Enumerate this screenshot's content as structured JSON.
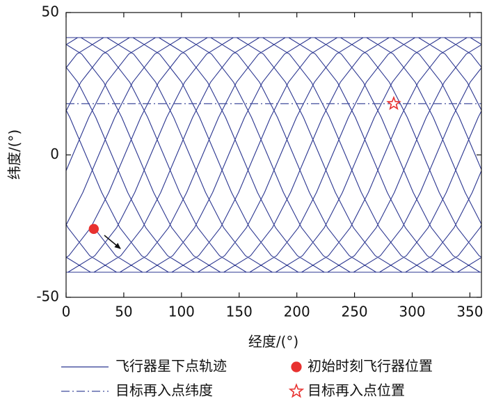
{
  "chart_data": {
    "type": "line",
    "x_label": "经度/(°)",
    "y_label": "纬度/(°)",
    "xlim": [
      0,
      360
    ],
    "ylim": [
      -50,
      50
    ],
    "xticks": [
      0,
      50,
      100,
      150,
      200,
      250,
      300,
      350
    ],
    "yticks": [
      -50,
      0,
      50
    ],
    "series": [
      {
        "name": "飞行器星下点轨迹",
        "color": "#2b3690",
        "kind": "line",
        "dash": "solid",
        "x": [
          24.0,
          43.0,
          66.3,
          91.6,
          114.9,
          133.9,
          149.5,
          163.3,
          177.2,
          192.7,
          211.8,
          235.0,
          260.4,
          283.6,
          302.7,
          318.2,
          332.1,
          345.9,
          361.5,
          null,
          -14.1,
          1.5,
          20.5,
          43.8,
          69.1,
          92.4,
          111.4,
          127.0,
          140.8,
          154.7,
          170.2,
          189.3,
          212.5,
          237.9,
          261.1,
          280.2,
          295.7,
          309.6,
          323.4,
          339.0,
          358.0,
          381.3,
          null,
          -2.0,
          21.3,
          46.6,
          69.9,
          88.9,
          104.5,
          118.3,
          132.2,
          147.7,
          166.8,
          190.0,
          215.4,
          238.6,
          257.7,
          273.2,
          287.1,
          300.9,
          316.5,
          335.5,
          358.8,
          384.1,
          null,
          -1.2,
          24.1,
          47.4,
          66.4,
          82.0,
          95.8,
          109.7,
          125.2,
          144.3,
          167.5,
          192.9,
          216.1,
          235.2,
          250.7,
          264.6,
          278.4,
          294.0,
          313.0,
          336.3,
          361.6,
          null,
          -23.7,
          1.6,
          24.9,
          43.9,
          59.5,
          73.3,
          87.2,
          102.7,
          121.8,
          145.0,
          170.4,
          193.6,
          212.7,
          228.2,
          242.1,
          255.9,
          271.5,
          290.5,
          313.8,
          339.1,
          362.4,
          null,
          -20.9,
          2.4,
          21.4,
          37.0,
          50.8,
          64.7,
          80.2,
          99.3,
          122.5,
          147.9,
          171.1,
          190.2,
          205.7,
          219.6,
          233.4,
          249.0,
          268.0,
          291.3,
          316.6,
          339.9,
          358.9,
          374.5,
          null,
          -1.1,
          14.5,
          28.3,
          42.2,
          57.7,
          76.8,
          100.0,
          125.4,
          148.6,
          167.7,
          183.2,
          197.1,
          210.9,
          226.5,
          245.5,
          268.8,
          294.1,
          317.4,
          336.4,
          352.0,
          365.8,
          null,
          -8.0,
          5.8,
          19.7,
          35.2,
          54.3,
          77.5,
          102.9,
          126.1,
          145.2,
          160.7,
          174.6,
          188.4,
          204.0,
          223.0,
          246.3,
          271.6,
          294.9,
          313.9,
          329.5,
          343.3,
          357.2,
          372.7,
          null,
          -2.8,
          12.7,
          31.8,
          55.0,
          80.4,
          103.6,
          122.7,
          138.2,
          152.1,
          165.9,
          181.5,
          200.5,
          223.8,
          249.1,
          272.4,
          291.4,
          307.0,
          320.8,
          334.7,
          350.2,
          369.3,
          null,
          -9.8,
          9.3,
          32.5,
          57.9,
          81.1,
          100.2,
          115.7,
          129.6,
          143.4,
          159.0,
          178.0,
          201.3,
          226.6,
          249.9,
          268.9,
          284.5,
          298.3,
          312.2,
          327.7,
          346.8,
          370.0,
          null,
          -13.2,
          10.0,
          35.4,
          58.6,
          77.7,
          93.2,
          107.1,
          120.9,
          136.5,
          155.5,
          178.8,
          204.1,
          227.4,
          246.4,
          262.0,
          275.8,
          289.7,
          305.2,
          324.3,
          347.5,
          372.9,
          null,
          -12.5,
          12.9,
          36.1,
          55.2,
          70.7,
          84.6,
          98.4,
          114.0,
          133.0,
          156.3,
          181.6,
          204.9,
          223.9,
          239.5,
          253.3,
          267.2,
          282.7,
          301.8,
          325.0,
          350.4,
          373.6,
          null,
          -9.6,
          13.6,
          32.7,
          48.2,
          62.1,
          75.9,
          91.5,
          110.5,
          133.8,
          159.1,
          182.4,
          201.4,
          217.0,
          230.8,
          244.7,
          260.2,
          279.3,
          302.5,
          327.9,
          351.1,
          370.2,
          null,
          -8.9,
          10.2,
          25.7,
          39.6,
          53.4,
          69.0,
          88.0,
          111.3,
          136.6,
          159.9,
          178.9,
          194.5,
          208.3,
          222.2,
          237.7,
          256.8,
          280.0,
          305.4,
          328.6,
          347.7,
          363.2,
          null,
          -12.3,
          3.2,
          17.1,
          30.9,
          46.5,
          65.5,
          88.8,
          114.1,
          137.4,
          156.4,
          172.0,
          185.8,
          199.7,
          215.2,
          234.3,
          257.5,
          282.9,
          306.1,
          325.2,
          340.7,
          354.6,
          368.4
        ],
        "values": [
          -25.5,
          -35.4,
          -41.2,
          -41.2,
          -35.4,
          -25.5,
          -13.2,
          0,
          13.2,
          25.5,
          35.4,
          41.2,
          41.2,
          35.4,
          25.5,
          13.2,
          0,
          -13.2,
          -25.5,
          null,
          -13.2,
          -25.5,
          -35.4,
          -41.2,
          -41.2,
          -35.4,
          -25.5,
          -13.2,
          0,
          13.2,
          25.5,
          35.4,
          41.2,
          41.2,
          35.4,
          25.5,
          13.2,
          0,
          -13.2,
          -25.5,
          -35.4,
          -41.2,
          null,
          -35.4,
          -41.2,
          -41.2,
          -35.4,
          -25.5,
          -13.2,
          0,
          13.2,
          25.5,
          35.4,
          41.2,
          41.2,
          35.4,
          25.5,
          13.2,
          0,
          -13.2,
          -25.5,
          -35.4,
          -41.2,
          -41.2,
          null,
          -41.2,
          -41.2,
          -35.4,
          -25.5,
          -13.2,
          0,
          13.2,
          25.5,
          35.4,
          41.2,
          41.2,
          35.4,
          25.5,
          13.2,
          0,
          -13.2,
          -25.5,
          -35.4,
          -41.2,
          -41.2,
          null,
          -41.2,
          -41.2,
          -35.4,
          -25.5,
          -13.2,
          0,
          13.2,
          25.5,
          35.4,
          41.2,
          41.2,
          35.4,
          25.5,
          13.2,
          0,
          -13.2,
          -25.5,
          -35.4,
          -41.2,
          -41.2,
          -35.4,
          null,
          -41.2,
          -35.4,
          -25.5,
          -13.2,
          0,
          13.2,
          25.5,
          35.4,
          41.2,
          41.2,
          35.4,
          25.5,
          13.2,
          0,
          -13.2,
          -25.5,
          -35.4,
          -41.2,
          -41.2,
          -35.4,
          -25.5,
          -13.2,
          null,
          -25.5,
          -13.2,
          0,
          13.2,
          25.5,
          35.4,
          41.2,
          41.2,
          35.4,
          25.5,
          13.2,
          0,
          -13.2,
          -25.5,
          -35.4,
          -41.2,
          -41.2,
          -35.4,
          -25.5,
          -13.2,
          0,
          null,
          -13.2,
          0,
          13.2,
          25.5,
          35.4,
          41.2,
          41.2,
          35.4,
          25.5,
          13.2,
          0,
          -13.2,
          -25.5,
          -35.4,
          -41.2,
          -41.2,
          -35.4,
          -25.5,
          -13.2,
          0,
          13.2,
          25.5,
          null,
          13.2,
          25.5,
          35.4,
          41.2,
          41.2,
          35.4,
          25.5,
          13.2,
          0,
          -13.2,
          -25.5,
          -35.4,
          -41.2,
          -41.2,
          -35.4,
          -25.5,
          -13.2,
          0,
          13.2,
          25.5,
          35.4,
          null,
          25.5,
          35.4,
          41.2,
          41.2,
          35.4,
          25.5,
          13.2,
          0,
          -13.2,
          -25.5,
          -35.4,
          -41.2,
          -41.2,
          -35.4,
          -25.5,
          -13.2,
          0,
          13.2,
          25.5,
          35.4,
          41.2,
          null,
          35.4,
          41.2,
          41.2,
          35.4,
          25.5,
          13.2,
          0,
          -13.2,
          -25.5,
          -35.4,
          -41.2,
          -41.2,
          -35.4,
          -25.5,
          -13.2,
          0,
          13.2,
          25.5,
          35.4,
          41.2,
          41.2,
          null,
          41.2,
          41.2,
          35.4,
          25.5,
          13.2,
          0,
          -13.2,
          -25.5,
          -35.4,
          -41.2,
          -41.2,
          -35.4,
          -25.5,
          -13.2,
          0,
          13.2,
          25.5,
          35.4,
          41.2,
          41.2,
          35.4,
          null,
          41.2,
          35.4,
          25.5,
          13.2,
          0,
          -13.2,
          -25.5,
          -35.4,
          -41.2,
          -41.2,
          -35.4,
          -25.5,
          -13.2,
          0,
          13.2,
          25.5,
          35.4,
          41.2,
          41.2,
          35.4,
          25.5,
          null,
          35.4,
          25.5,
          13.2,
          0,
          -13.2,
          -25.5,
          -35.4,
          -41.2,
          -41.2,
          -35.4,
          -25.5,
          -13.2,
          0,
          13.2,
          25.5,
          35.4,
          41.2,
          41.2,
          35.4,
          25.5,
          13.2,
          null,
          25.5,
          13.2,
          0,
          -13.2,
          -25.5,
          -35.4,
          -41.2,
          -41.2,
          -35.4,
          -25.5,
          -13.2,
          0,
          13.2,
          25.5,
          35.4,
          41.2,
          41.2,
          35.4,
          25.5,
          13.2,
          0,
          -13.2
        ]
      },
      {
        "name": "初始时刻飞行器位置",
        "color": "#e8312f",
        "kind": "scatter",
        "marker": "circle",
        "x": [
          24
        ],
        "values": [
          -26
        ]
      },
      {
        "name": "目标再入点纬度",
        "color": "#3f4b9c",
        "kind": "line",
        "dash": "dashdot",
        "x": [
          0,
          360
        ],
        "values": [
          18,
          18
        ]
      },
      {
        "name": "目标再入点位置",
        "color": "#e8312f",
        "kind": "scatter",
        "marker": "star",
        "x": [
          284
        ],
        "values": [
          18
        ]
      }
    ]
  }
}
